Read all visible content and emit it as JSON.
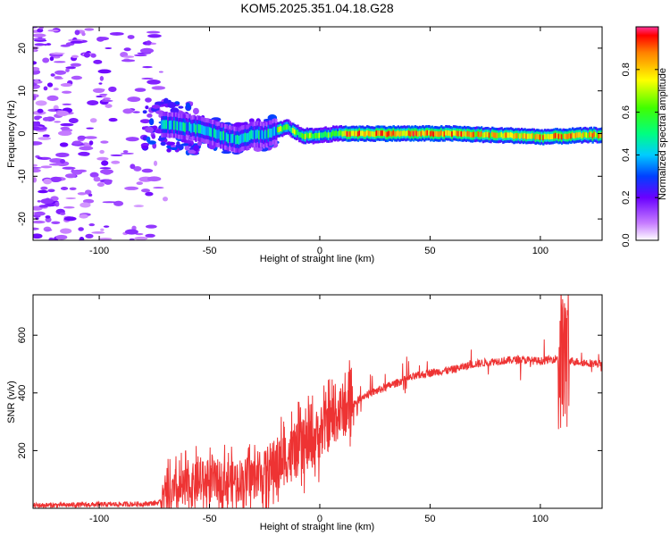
{
  "title": "KOM5.2025.351.04.18.G28",
  "chart_data": [
    {
      "type": "heatmap",
      "name": "spectrogram",
      "xlabel": "Height of straight line (km)",
      "ylabel": "Frequency (Hz)",
      "xlim": [
        -130,
        128
      ],
      "ylim": [
        -25,
        25
      ],
      "xticks": [
        -100,
        -50,
        0,
        50,
        100
      ],
      "xtick_labels": [
        "-100",
        "-50",
        "0",
        "50",
        "100"
      ],
      "yticks": [
        -20,
        -10,
        0,
        10,
        20
      ],
      "ytick_labels": [
        "-20",
        "-10",
        "0",
        "10",
        "20"
      ],
      "ridge": {
        "x": [
          -70,
          -60,
          -50,
          -42,
          -38,
          -34,
          -30,
          -26,
          -22,
          -18,
          -15,
          -12,
          -8,
          -4,
          0,
          5,
          10,
          20,
          30,
          40,
          50,
          60,
          70,
          80,
          90,
          100,
          110,
          120,
          128
        ],
        "y": [
          2,
          1.5,
          0.5,
          -1,
          -1.5,
          -1,
          0,
          -0.5,
          0.2,
          1,
          1.5,
          0.5,
          -0.5,
          -0.6,
          -0.4,
          -0.1,
          0,
          0,
          0,
          0,
          0,
          0,
          -0.2,
          -0.4,
          -0.5,
          -0.8,
          -0.6,
          -0.4,
          -0.3
        ]
      },
      "colorbar": {
        "label": "Normalized spectral amplitude",
        "range": [
          0,
          1
        ],
        "ticks": [
          0,
          0.2,
          0.4,
          0.6,
          0.8
        ],
        "tick_labels": [
          "0.0",
          "0.2",
          "0.4",
          "0.6",
          "0.8"
        ]
      }
    },
    {
      "type": "line",
      "name": "snr",
      "xlabel": "Height of straight line (km)",
      "ylabel": "SNR (v/v)",
      "xlim": [
        -130,
        128
      ],
      "ylim": [
        0,
        740
      ],
      "xticks": [
        -100,
        -50,
        0,
        50,
        100
      ],
      "xtick_labels": [
        "-100",
        "-50",
        "0",
        "50",
        "100"
      ],
      "yticks": [
        200,
        400,
        600
      ],
      "ytick_labels": [
        "200",
        "400",
        "600"
      ],
      "color": "#ee3333",
      "envelope": {
        "x": [
          -130,
          -80,
          -72,
          -65,
          -55,
          -45,
          -35,
          -25,
          -15,
          -5,
          0,
          5,
          10,
          15,
          20,
          30,
          40,
          50,
          60,
          65,
          70,
          80,
          90,
          100,
          108,
          112,
          115,
          120,
          128
        ],
        "y": [
          10,
          15,
          20,
          55,
          90,
          95,
          100,
          120,
          180,
          220,
          260,
          300,
          340,
          360,
          390,
          420,
          450,
          470,
          480,
          490,
          500,
          510,
          515,
          510,
          520,
          515,
          510,
          505,
          500
        ]
      }
    }
  ]
}
